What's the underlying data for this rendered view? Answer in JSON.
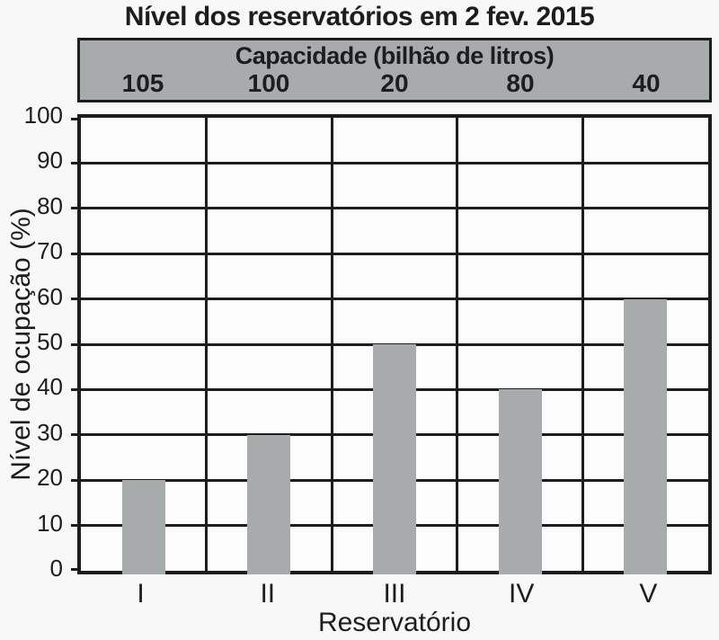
{
  "chart_data": {
    "type": "bar",
    "title": "Nível dos reservatórios em 2 fev. 2015",
    "capacity_band": {
      "header": "Capacidade (bilhão de litros)",
      "values": [
        105,
        100,
        20,
        80,
        40
      ]
    },
    "categories": [
      "I",
      "II",
      "III",
      "IV",
      "V"
    ],
    "values": [
      20,
      30,
      50,
      40,
      60
    ],
    "xlabel": "Reservatório",
    "ylabel": "Nível de ocupação (%)",
    "ylim": [
      0,
      100
    ],
    "yticks": [
      0,
      10,
      20,
      30,
      40,
      50,
      60,
      70,
      80,
      90,
      100
    ],
    "grid": true,
    "legend_position": "none",
    "colors": {
      "bar": "#a8abac",
      "band_fill": "#a8abac",
      "line": "#1d1d1f",
      "plot_bg": "#fcfcfc",
      "page_bg": "#f8f8f8"
    }
  }
}
